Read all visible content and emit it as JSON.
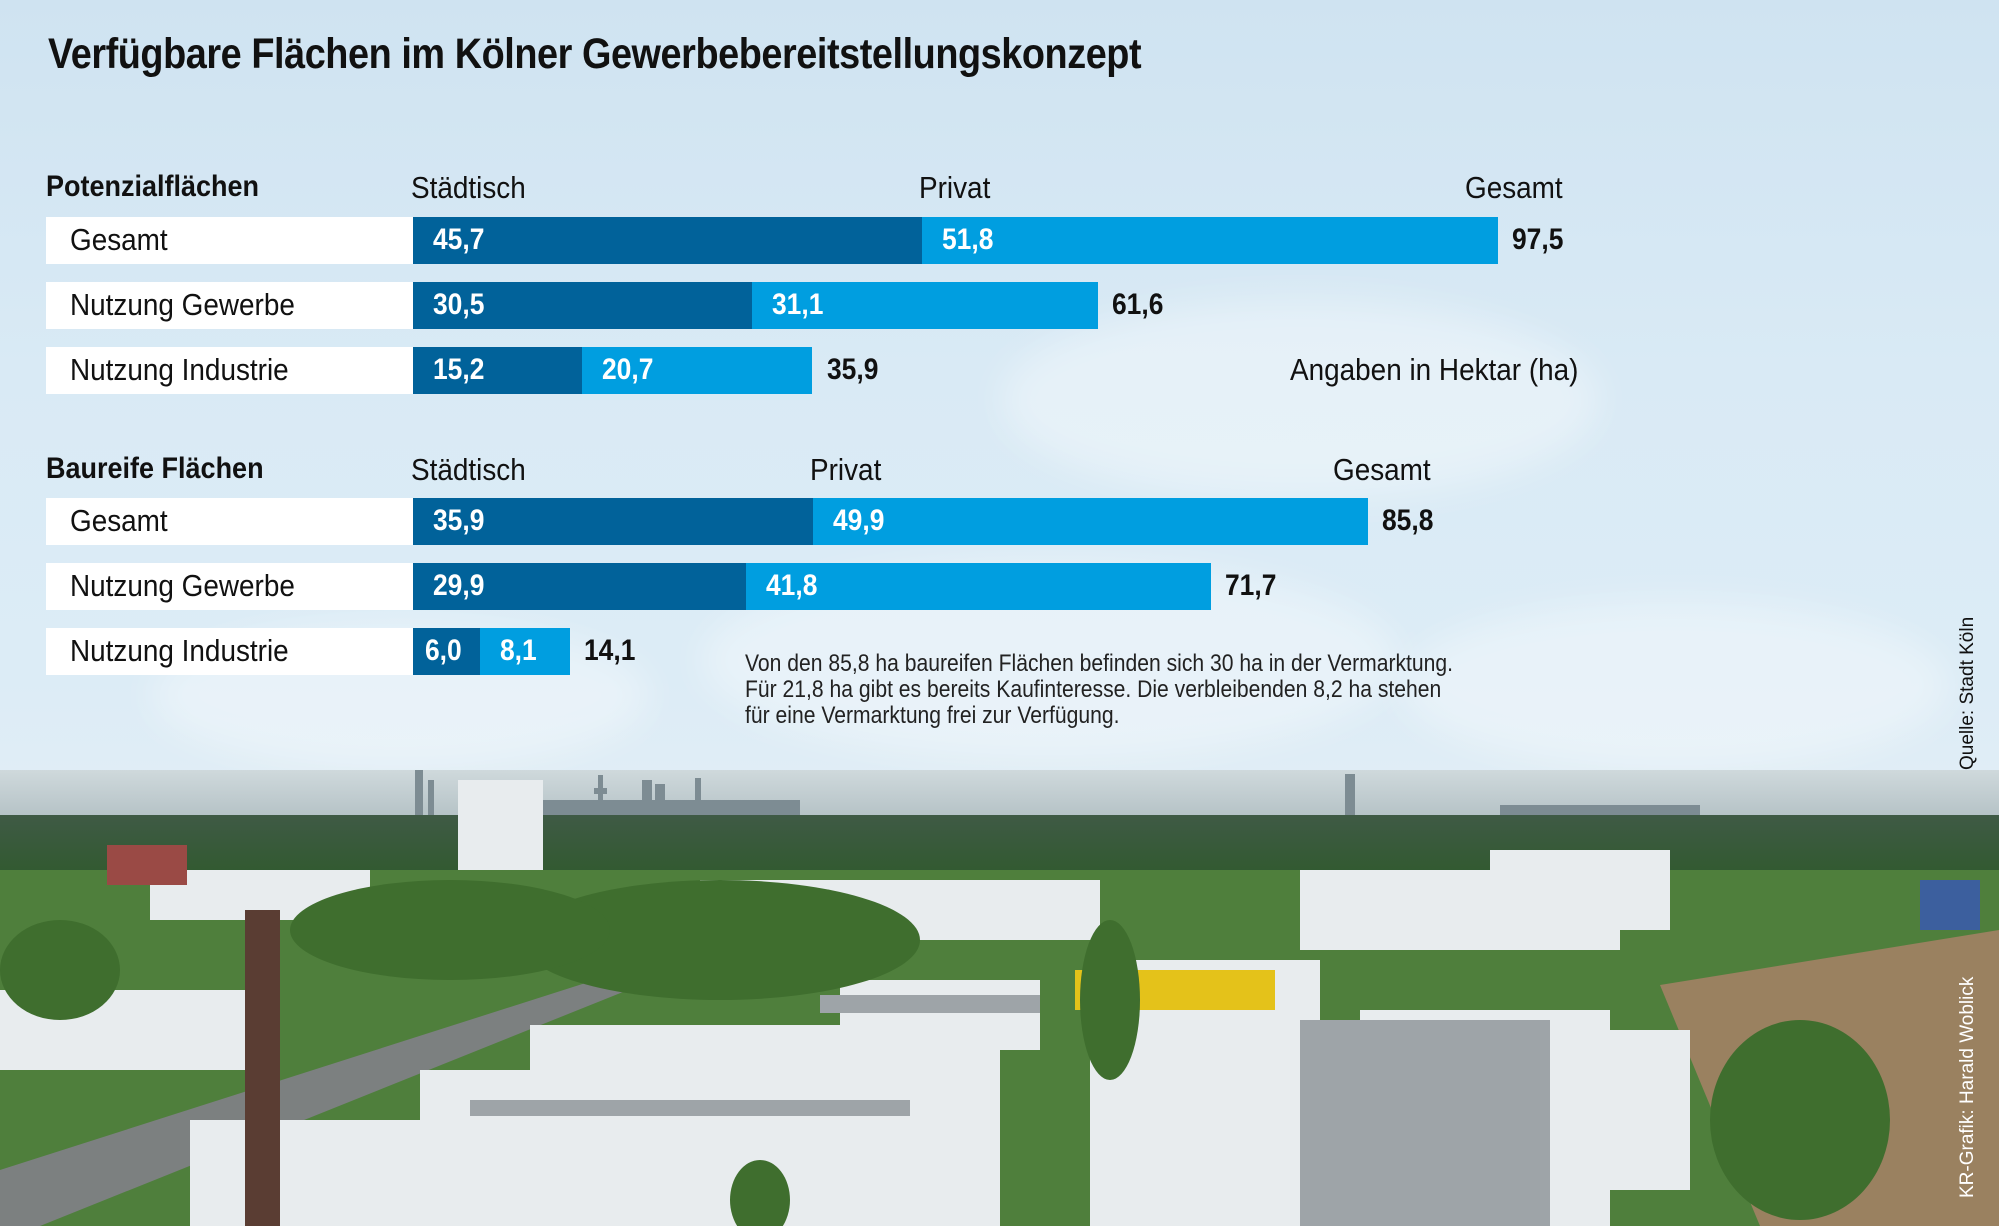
{
  "title": "Verfügbare Flächen im Kölner Gewerbebereitstellungskonzept",
  "unit_note": "Angaben in Hektar (ha)",
  "footnote": [
    "Von den 85,8 ha baureifen Flächen befinden sich 30 ha in der Vermarktung.",
    "Für 21,8 ha gibt es bereits Kaufinteresse. Die verbleibenden 8,2 ha stehen",
    "für eine Vermarktung frei zur Verfügung."
  ],
  "source": "Quelle: Stadt Köln",
  "credit": "KR-Grafik: Harald Woblick",
  "colors": {
    "staedtisch": "#01629a",
    "privat": "#009ee0",
    "label_box": "#ffffff",
    "text": "#111111"
  },
  "chart_data": [
    {
      "type": "bar",
      "orientation": "horizontal-stacked",
      "title": "Potenzialflächen",
      "unit": "ha",
      "column_headers": {
        "staedtisch": "Städtisch",
        "privat": "Privat",
        "gesamt": "Gesamt"
      },
      "categories": [
        "Gesamt",
        "Nutzung Gewerbe",
        "Nutzung Industrie"
      ],
      "series": [
        {
          "name": "Städtisch",
          "values": [
            45.7,
            30.5,
            15.2
          ],
          "labels": [
            "45,7",
            "30,5",
            "15,2"
          ]
        },
        {
          "name": "Privat",
          "values": [
            51.8,
            31.1,
            20.7
          ],
          "labels": [
            "51,8",
            "31,1",
            "20,7"
          ]
        }
      ],
      "totals": [
        97.5,
        61.6,
        35.9
      ],
      "total_labels": [
        "97,5",
        "61,6",
        "35,9"
      ]
    },
    {
      "type": "bar",
      "orientation": "horizontal-stacked",
      "title": "Baureife Flächen",
      "unit": "ha",
      "column_headers": {
        "staedtisch": "Städtisch",
        "privat": "Privat",
        "gesamt": "Gesamt"
      },
      "categories": [
        "Gesamt",
        "Nutzung Gewerbe",
        "Nutzung Industrie"
      ],
      "series": [
        {
          "name": "Städtisch",
          "values": [
            35.9,
            29.9,
            6.0
          ],
          "labels": [
            "35,9",
            "29,9",
            "6,0"
          ]
        },
        {
          "name": "Privat",
          "values": [
            49.9,
            41.8,
            8.1
          ],
          "labels": [
            "49,9",
            "41,8",
            "8,1"
          ]
        }
      ],
      "totals": [
        85.8,
        71.7,
        14.1
      ],
      "total_labels": [
        "85,8",
        "71,7",
        "14,1"
      ]
    }
  ]
}
